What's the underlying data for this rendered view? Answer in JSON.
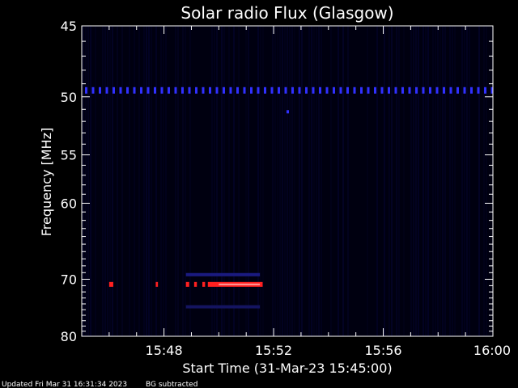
{
  "chart_data": {
    "type": "heatmap",
    "title": "Solar radio Flux (Glasgow)",
    "xlabel": "Start Time (31-Mar-23 15:45:00)",
    "ylabel": "Frequency [MHz]",
    "x_range_minutes": [
      0,
      15
    ],
    "y_range_mhz": [
      45,
      80
    ],
    "x_ticks": [
      {
        "minute": 3,
        "label": "15:48"
      },
      {
        "minute": 7,
        "label": "15:52"
      },
      {
        "minute": 11,
        "label": "15:56"
      },
      {
        "minute": 15,
        "label": "16:00"
      }
    ],
    "y_ticks": [
      {
        "value": 45,
        "label": "45"
      },
      {
        "value": 50,
        "label": "50"
      },
      {
        "value": 55,
        "label": "55"
      },
      {
        "value": 60,
        "label": "60"
      },
      {
        "value": 70,
        "label": "70"
      },
      {
        "value": 80,
        "label": "80"
      }
    ],
    "features": [
      {
        "name": "interference band",
        "freq_mhz": 49.5,
        "t_start_min": 0.0,
        "t_end_min": 15.0,
        "color": "#3030ff"
      },
      {
        "name": "emission burst",
        "freq_mhz": 70.8,
        "t_start_min": 1.0,
        "t_end_min": 6.6,
        "color": "#ff2020"
      },
      {
        "name": "upper sideband",
        "freq_mhz": 69.3,
        "t_start_min": 3.8,
        "t_end_min": 6.5,
        "color": "#1a1a80"
      },
      {
        "name": "lower sideband",
        "freq_mhz": 74.5,
        "t_start_min": 3.8,
        "t_end_min": 6.5,
        "color": "#141460"
      }
    ],
    "background_color": "#000010"
  },
  "footer": {
    "updated": "Updated Fri Mar 31 16:31:34 2023",
    "note": "BG subtracted"
  }
}
